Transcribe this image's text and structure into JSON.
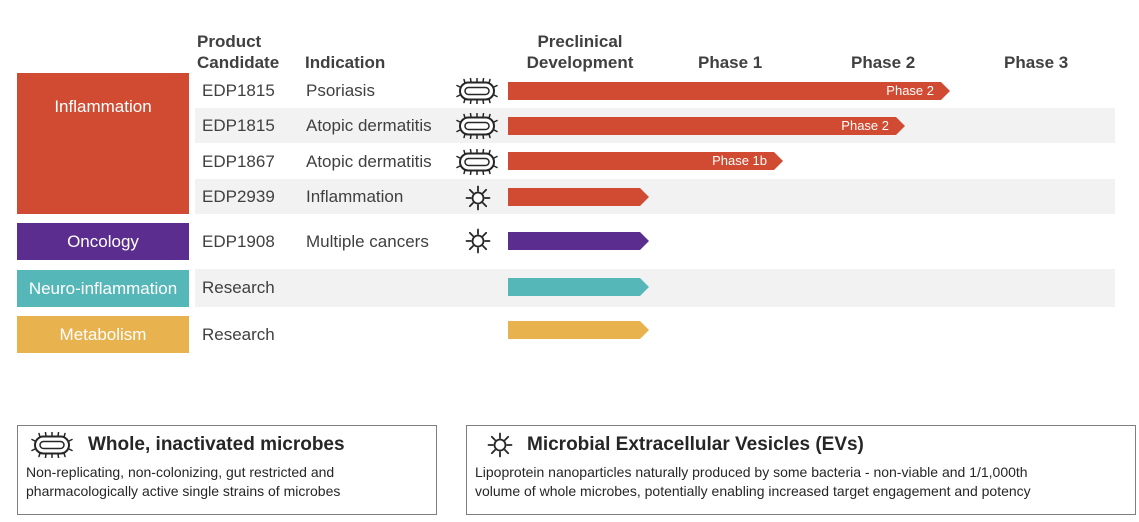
{
  "headers": {
    "product_candidate": [
      "Product",
      "Candidate"
    ],
    "indication": "Indication",
    "preclinical": [
      "Preclinical",
      "Development"
    ],
    "phase1": "Phase 1",
    "phase2": "Phase 2",
    "phase3": "Phase 3"
  },
  "categories": [
    {
      "label": "Inflammation",
      "color": "#d14b32"
    },
    {
      "label": "Oncology",
      "color": "#5b2d8e"
    },
    {
      "label": "Neuro-inflammation",
      "color": "#56b7b8"
    },
    {
      "label": "Metabolism",
      "color": "#e8b24f"
    }
  ],
  "rows": [
    {
      "candidate": "EDP1815",
      "indication": "Psoriasis",
      "icon": "whole-microbe-icon",
      "bar_color": "#d14b32",
      "stage": "Phase 2",
      "bar_label": "Phase 2",
      "progress": 0.69
    },
    {
      "candidate": "EDP1815",
      "indication": "Atopic dermatitis",
      "icon": "whole-microbe-icon",
      "bar_color": "#d14b32",
      "stage": "Phase 2",
      "bar_label": "Phase 2",
      "progress": 0.62
    },
    {
      "candidate": "EDP1867",
      "indication": "Atopic dermatitis",
      "icon": "whole-microbe-icon",
      "bar_color": "#d14b32",
      "stage": "Phase 1b",
      "bar_label": "Phase 1b",
      "progress": 0.43
    },
    {
      "candidate": "EDP2939",
      "indication": "Inflammation",
      "icon": "extracellular-vesicle-icon",
      "bar_color": "#d14b32",
      "stage": "Preclinical",
      "bar_label": "",
      "progress": 0.22
    },
    {
      "candidate": "EDP1908",
      "indication": "Multiple cancers",
      "icon": "extracellular-vesicle-icon",
      "bar_color": "#5b2d8e",
      "stage": "Preclinical",
      "bar_label": "",
      "progress": 0.22
    },
    {
      "candidate": "Research",
      "indication": "",
      "icon": "",
      "bar_color": "#56b7b8",
      "stage": "Preclinical",
      "bar_label": "",
      "progress": 0.22
    },
    {
      "candidate": "Research",
      "indication": "",
      "icon": "",
      "bar_color": "#e8b24f",
      "stage": "Preclinical",
      "bar_label": "",
      "progress": 0.22
    }
  ],
  "legend": {
    "whole": {
      "title": "Whole, inactivated microbes",
      "lines": [
        "Non-replicating, non-colonizing, gut restricted and",
        "pharmacologically active single strains of microbes"
      ],
      "icon": "whole-microbe-icon"
    },
    "ev": {
      "title": "Microbial Extracellular Vesicles (EVs)",
      "lines": [
        "Lipoprotein nanoparticles naturally  produced by some bacteria - non-viable and 1/1,000th",
        "volume of whole microbes, potentially enabling increased target engagement and potency"
      ],
      "icon": "extracellular-vesicle-icon"
    }
  }
}
